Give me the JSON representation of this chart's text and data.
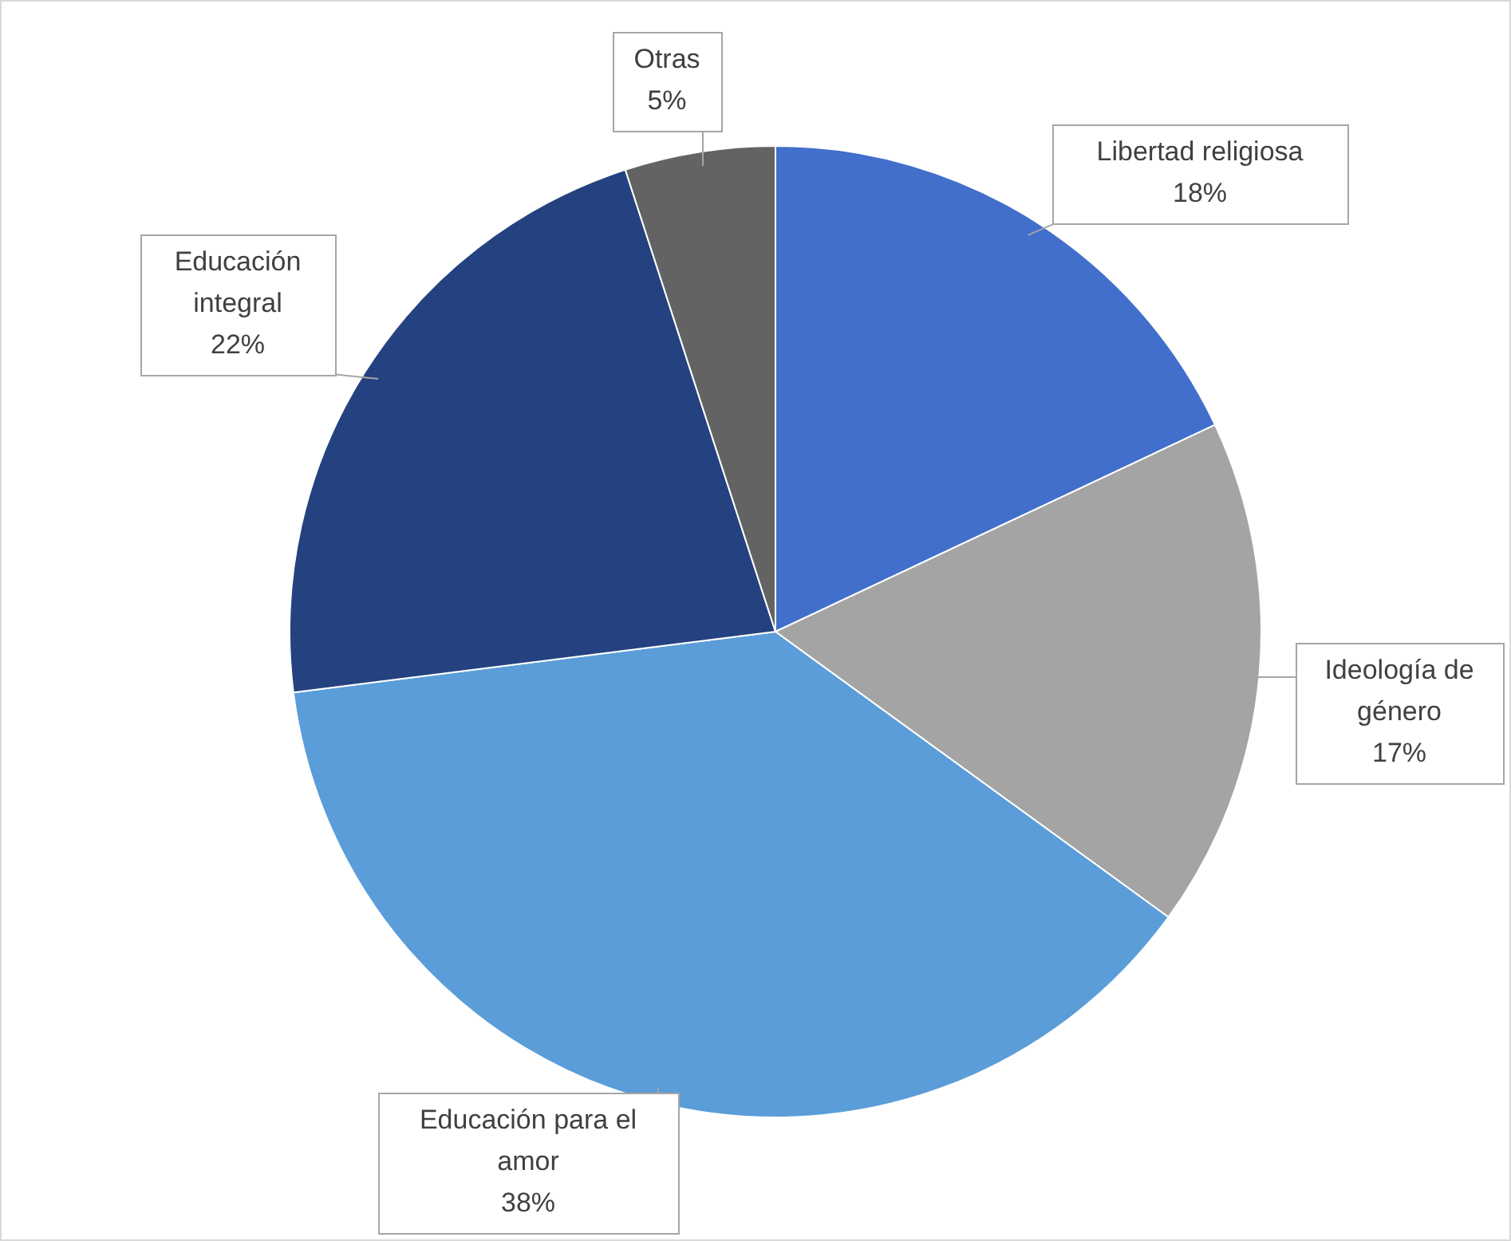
{
  "chart_data": {
    "type": "pie",
    "categories": [
      "Libertad religiosa",
      "Ideología de género",
      "Educación para el amor",
      "Educación integral",
      "Otras"
    ],
    "values": [
      18,
      17,
      38,
      22,
      5
    ],
    "value_labels": [
      "18%",
      "17%",
      "38%",
      "22%",
      "5%"
    ],
    "colors": [
      "#416fcb",
      "#a4a4a4",
      "#5a9dd8",
      "#24427f",
      "#636363"
    ]
  }
}
